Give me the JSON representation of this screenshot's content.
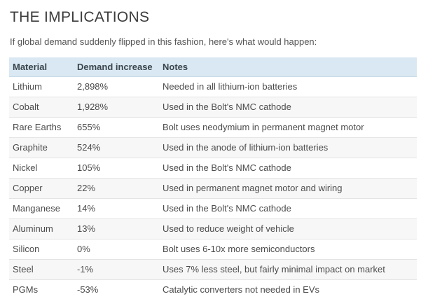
{
  "page": {
    "title": "THE IMPLICATIONS",
    "intro": "If global demand suddenly flipped in this fashion, here's what would happen:"
  },
  "table": {
    "columns": [
      "Material",
      "Demand increase",
      "Notes"
    ],
    "rows": [
      {
        "material": "Lithium",
        "demand_increase": "2,898%",
        "notes": "Needed in all lithium-ion batteries"
      },
      {
        "material": "Cobalt",
        "demand_increase": "1,928%",
        "notes": "Used in the Bolt's NMC cathode"
      },
      {
        "material": "Rare Earths",
        "demand_increase": "655%",
        "notes": "Bolt uses neodymium in permanent magnet motor"
      },
      {
        "material": "Graphite",
        "demand_increase": "524%",
        "notes": "Used in the anode of lithium-ion batteries"
      },
      {
        "material": "Nickel",
        "demand_increase": "105%",
        "notes": "Used in the Bolt's NMC cathode"
      },
      {
        "material": "Copper",
        "demand_increase": "22%",
        "notes": "Used in permanent magnet motor and wiring"
      },
      {
        "material": "Manganese",
        "demand_increase": "14%",
        "notes": "Used in the Bolt's NMC cathode"
      },
      {
        "material": "Aluminum",
        "demand_increase": "13%",
        "notes": "Used to reduce weight of vehicle"
      },
      {
        "material": "Silicon",
        "demand_increase": "0%",
        "notes": "Bolt uses 6-10x more semiconductors"
      },
      {
        "material": "Steel",
        "demand_increase": "-1%",
        "notes": "Uses 7% less steel, but fairly minimal impact on market"
      },
      {
        "material": "PGMs",
        "demand_increase": "-53%",
        "notes": "Catalytic converters not needed in EVs"
      }
    ]
  },
  "colors": {
    "header_bg": "#d9e8f2",
    "header_text": "#3b454d",
    "row_alt_bg": "#f7f7f7",
    "row_border": "#e4e4e4",
    "title_text": "#3d3d3d",
    "body_text": "#4c4c4c"
  }
}
